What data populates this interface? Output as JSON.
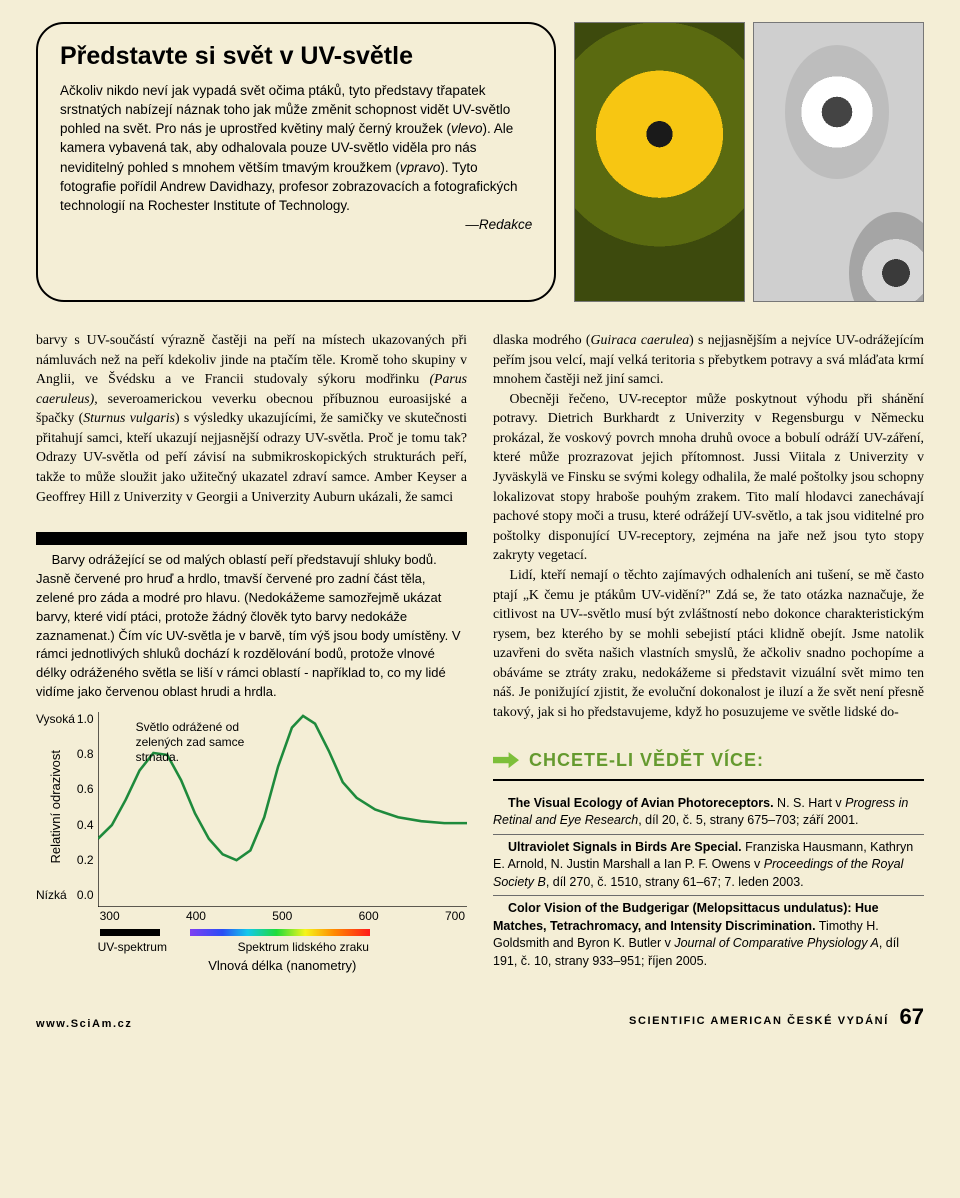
{
  "callout": {
    "title": "Představte si svět v UV-světle",
    "body_html": "Ačkoliv nikdo neví jak vypadá svět očima ptáků, tyto představy třapatek srstnatých nabízejí náznak toho jak může změnit schopnost vidět UV-světlo pohled na svět. Pro nás je uprostřed květiny malý černý kroužek (<i>vlevo</i>). Ale kamera vybavená tak, aby odhalovala pouze UV-světlo viděla pro nás neviditelný pohled s mnohem větším tmavým kroužkem (<i>vpravo</i>). Tyto fotografie pořídil Andrew Davidhazy, profesor zobrazovacích a fotografických technologií na Rochester Institute of Technology.<br><span style='display:block;text-align:right'><i>—Redakce</i></span>"
  },
  "left_body_html": "barvy s UV-součástí výrazně častěji na peří na místech ukazovaných při námluvách než na peří kdekoliv jinde na ptačím těle. Kromě toho skupiny v Anglii, ve Švédsku a ve Francii studovaly sýkoru modřinku <i>(Parus caeruleus)</i>, severoamerickou veverku obecnou příbuznou euroasijské a špačky (<i>Sturnus vulgaris</i>) s výsledky ukazujícími, že samičky ve skutečnosti přitahují samci, kteří ukazují nejjasnější odrazy UV-světla. Proč je tomu tak? Odrazy UV-světla od peří závisí na submikroskopických strukturách peří, takže to může sloužit jako užitečný ukazatel zdraví samce. Amber Keyser a Geoffrey Hill z Univerzity v Georgii a Univerzity Auburn ukázali, že samci",
  "fig": {
    "caption": "Barvy odrážející se od malých oblastí peří představují shluky bodů. Jasně červené pro hruď a hrdlo, tmavší červené pro zadní část těla, zelené pro záda a modré pro hlavu. (Nedokážeme samozřejmě ukázat barvy, které vidí ptáci, protože žádný člověk tyto barvy nedokáže zaznamenat.) Čím víc UV-světla je v barvě, tím výš jsou body umístěny. V rámci jednotlivých shluků dochází k rozdělování bodů, protože vlnové délky odráženého světla se liší v rámci oblastí - například to, co my lidé vidíme jako červenou oblast hrudi a hrdla.",
    "chart": {
      "type": "line",
      "note_text": "Světlo odrážené od zelených zad samce strnada.",
      "line_color": "#1e8a3c",
      "background_color": "#f4eed6",
      "line_width": 2.5,
      "xlabel": "Vlnová délka (nanometry)",
      "ylabel": "Relativní odrazivost",
      "y_high_label": "Vysoká",
      "y_low_label": "Nízká",
      "x_ticks": [
        "300",
        "400",
        "500",
        "600",
        "700"
      ],
      "y_ticks": [
        "1.0",
        "0.8",
        "0.6",
        "0.4",
        "0.2",
        "0.0"
      ],
      "xlim": [
        300,
        700
      ],
      "ylim": [
        0,
        1
      ],
      "series": [
        {
          "x": 300,
          "y": 0.35
        },
        {
          "x": 315,
          "y": 0.42
        },
        {
          "x": 330,
          "y": 0.55
        },
        {
          "x": 345,
          "y": 0.7
        },
        {
          "x": 360,
          "y": 0.79
        },
        {
          "x": 375,
          "y": 0.78
        },
        {
          "x": 390,
          "y": 0.65
        },
        {
          "x": 405,
          "y": 0.48
        },
        {
          "x": 420,
          "y": 0.35
        },
        {
          "x": 435,
          "y": 0.27
        },
        {
          "x": 450,
          "y": 0.24
        },
        {
          "x": 465,
          "y": 0.29
        },
        {
          "x": 480,
          "y": 0.46
        },
        {
          "x": 495,
          "y": 0.72
        },
        {
          "x": 510,
          "y": 0.92
        },
        {
          "x": 522,
          "y": 0.98
        },
        {
          "x": 535,
          "y": 0.94
        },
        {
          "x": 550,
          "y": 0.8
        },
        {
          "x": 565,
          "y": 0.64
        },
        {
          "x": 580,
          "y": 0.56
        },
        {
          "x": 600,
          "y": 0.5
        },
        {
          "x": 625,
          "y": 0.46
        },
        {
          "x": 650,
          "y": 0.44
        },
        {
          "x": 675,
          "y": 0.43
        },
        {
          "x": 700,
          "y": 0.43
        }
      ],
      "spectrum_labels": {
        "uv": "UV-spektrum",
        "visible": "Spektrum lidského zraku"
      },
      "spectrum_colors": [
        "#7e3ff2",
        "#2a4df5",
        "#13c8eb",
        "#1fdc3a",
        "#f5f51a",
        "#ff8a00",
        "#ff1a1a"
      ],
      "uv_bar_color": "#000000"
    }
  },
  "right_body": [
    "dlaska modrého (<i>Guiraca caerulea</i>) s nejjasnějším a nejvíce UV-odrážejícím peřím jsou velcí, mají velká teritoria s přebytkem potravy a svá mláďata krmí mnohem častěji než jiní samci.",
    "Obecněji řečeno, UV-receptor může poskytnout výhodu při shánění potravy. Dietrich Burkhardt z Univerzity v Regensburgu v Německu prokázal, že voskový povrch mnoha druhů ovoce a bobulí odráží UV-záření, které může prozrazovat jejich přítomnost. Jussi Viitala z Univerzity v Jyväskylä ve Finsku se svými kolegy odhalila, že malé poštolky jsou schopny lokalizovat stopy hraboše pouhým zrakem. Tito malí hlodavci zanechávají pachové stopy moči a trusu, které odrážejí UV-světlo, a tak jsou viditelné pro poštolky disponující UV-receptory, zejména na jaře než jsou tyto stopy zakryty vegetací.",
    "Lidí, kteří nemají o těchto zajímavých odhaleních ani tušení, se mě často ptají „K čemu je ptákům UV-vidění?\" Zdá se, že tato otázka naznačuje, že citlivost na UV--světlo musí být zvláštností nebo dokonce charakteristickým rysem, bez kterého by se mohli sebejistí ptáci klidně obejít. Jsme natolik uzavřeni do světa našich vlastních smyslů, že ačkoliv snadno pochopíme a obáváme se ztráty zraku, nedokážeme si představit vizuální svět mimo ten náš. Je ponižující zjistit, že evoluční dokonalost je iluzí a že svět není přesně takový, jak si ho představujeme, když ho posuzujeme ve světle lidské do-"
  ],
  "moreinfo": {
    "heading": "CHCETE-LI VĚDĚT VÍCE:",
    "arrow_color": "#7dbf3a",
    "heading_color": "#659a2f",
    "refs": [
      "<b>The Visual Ecology of Avian Photoreceptors.</b> N. S. Hart v <i>Progress in Retinal and Eye Research</i>, díl 20, č. 5, strany 675–703; září 2001.",
      "<b>Ultraviolet Signals in Birds Are Special.</b> Franziska Hausmann, Kathryn E. Arnold, N. Justin Marshall a Ian P. F. Owens v <i>Proceedings of the Royal Society B</i>, díl 270, č. 1510, strany 61–67; 7. leden 2003.",
      "<b>Color Vision of the Budgerigar (Melopsittacus undulatus): Hue Matches, Tetrachromacy, and Intensity Discrimination.</b> Timothy H. Goldsmith and Byron K. Butler v <i>Journal of Comparative Physiology A</i>, díl 191, č. 10, strany 933–951; říjen 2005."
    ]
  },
  "footer": {
    "url": "www.SciAm.cz",
    "magazine": "SCIENTIFIC AMERICAN ČESKÉ VYDÁNÍ",
    "page_number": "67"
  }
}
